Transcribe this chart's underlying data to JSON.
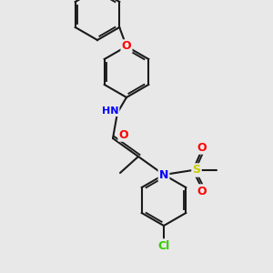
{
  "bg_color": "#e8e8e8",
  "bond_color": "#1a1a1a",
  "bond_width": 1.5,
  "atom_colors": {
    "Cl": "#33cc00",
    "N": "#0000ff",
    "O": "#ff0000",
    "S": "#cccc00",
    "C": "#1a1a1a",
    "H": "#808080"
  }
}
